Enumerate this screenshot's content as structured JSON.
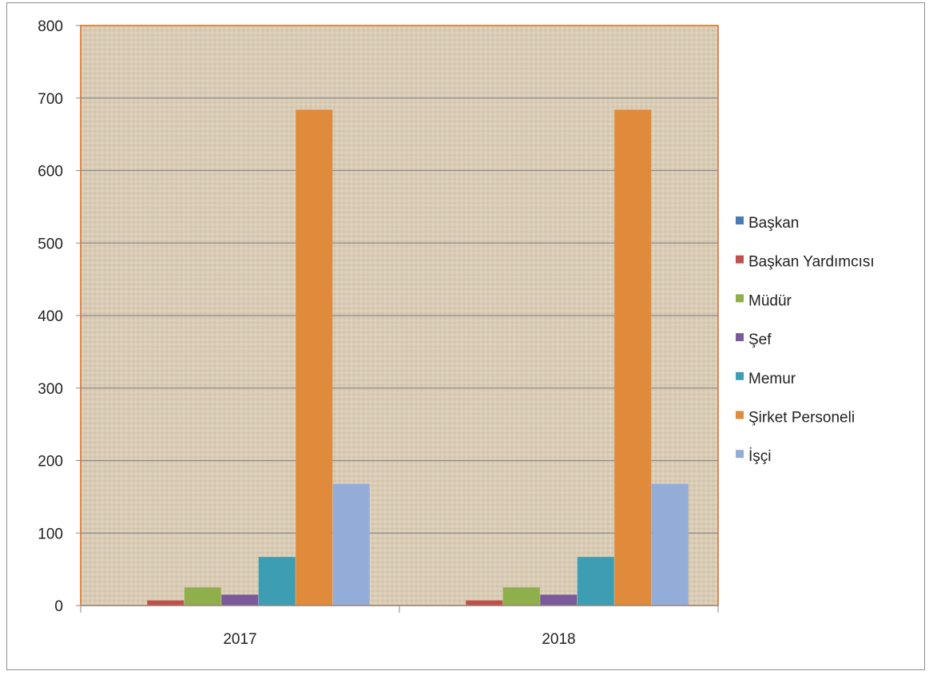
{
  "chart_data": {
    "type": "bar",
    "title": "",
    "xlabel": "",
    "ylabel": "",
    "categories": [
      "2017",
      "2018"
    ],
    "ylim": [
      0,
      800
    ],
    "yticks": [
      0,
      100,
      200,
      300,
      400,
      500,
      600,
      700,
      800
    ],
    "grid": true,
    "legend_position": "right",
    "series": [
      {
        "name": "Başkan",
        "color": "#4a7ab5",
        "values": [
          0,
          0
        ]
      },
      {
        "name": "Başkan Yardımcısı",
        "color": "#c0504d",
        "values": [
          7,
          7
        ]
      },
      {
        "name": "Müdür",
        "color": "#8fae4c",
        "values": [
          25,
          25
        ]
      },
      {
        "name": "Şef",
        "color": "#7a5a9a",
        "values": [
          15,
          15
        ]
      },
      {
        "name": "Memur",
        "color": "#3d9db3",
        "values": [
          67,
          67
        ]
      },
      {
        "name": "Şirket Personeli",
        "color": "#e08a3c",
        "values": [
          684,
          684
        ]
      },
      {
        "name": "İşçi",
        "color": "#94add8",
        "values": [
          168,
          168
        ]
      }
    ]
  }
}
